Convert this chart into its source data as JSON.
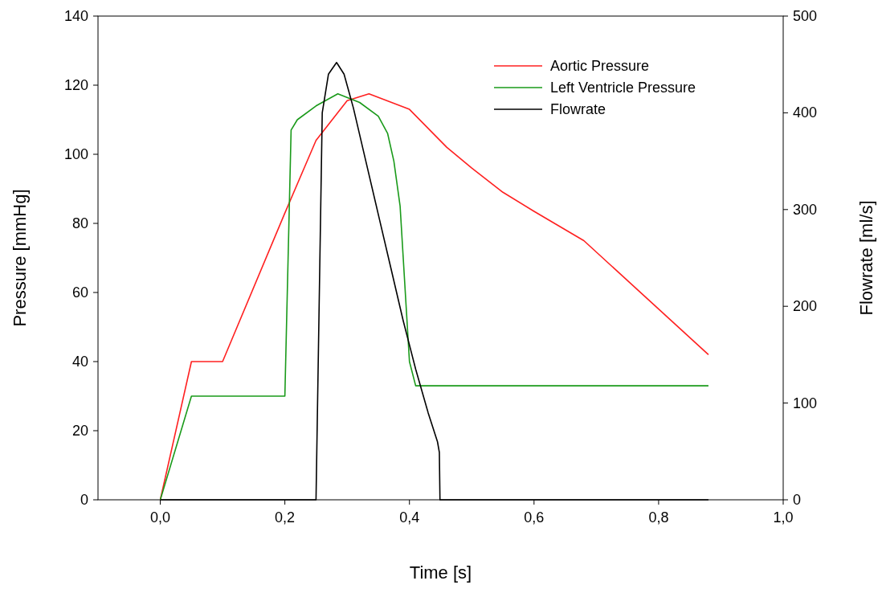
{
  "chart_data": {
    "type": "line",
    "xlabel": "Time [s]",
    "ylabel": "Pressure [mmHg]",
    "y2label": "Flowrate [ml/s]",
    "xlim": [
      -0.1,
      1.0
    ],
    "xticks": [
      {
        "value": 0,
        "label": "0,0"
      },
      {
        "value": 0.2,
        "label": "0,2"
      },
      {
        "value": 0.4,
        "label": "0,4"
      },
      {
        "value": 0.6,
        "label": "0,6"
      },
      {
        "value": 0.8,
        "label": "0,8"
      },
      {
        "value": 1.0,
        "label": "1,0"
      }
    ],
    "ylim": [
      0,
      140
    ],
    "yticks": [
      0,
      20,
      40,
      60,
      80,
      100,
      120,
      140
    ],
    "y2lim": [
      0,
      500
    ],
    "y2ticks": [
      0,
      100,
      200,
      300,
      400,
      500
    ],
    "grid": false,
    "legend": "top right",
    "marker": "none",
    "line_style": "solid",
    "series": [
      {
        "name": "Aortic Pressure",
        "color": "#ff2020",
        "x": [
          0,
          0.05,
          0.1,
          0.2,
          0.25,
          0.3,
          0.335,
          0.4,
          0.46,
          0.5,
          0.55,
          0.6,
          0.68,
          0.88
        ],
        "values": [
          0,
          40,
          40,
          83,
          104,
          115.5,
          117.5,
          113,
          102,
          96,
          89,
          83.5,
          75,
          42
        ]
      },
      {
        "name": "Left Ventricle Pressure",
        "color": "#1a9a1a",
        "x": [
          0,
          0.05,
          0.2,
          0.21,
          0.22,
          0.25,
          0.285,
          0.32,
          0.35,
          0.365,
          0.375,
          0.385,
          0.39,
          0.4,
          0.41,
          0.88
        ],
        "values": [
          0,
          30,
          30,
          107,
          110,
          114,
          117.5,
          115,
          111,
          106,
          98,
          85,
          70,
          40,
          33,
          33
        ]
      },
      {
        "name": "Flowrate",
        "color": "#000000",
        "axis": "y2",
        "x": [
          0,
          0.25,
          0.255,
          0.26,
          0.27,
          0.283,
          0.295,
          0.31,
          0.33,
          0.35,
          0.37,
          0.39,
          0.41,
          0.43,
          0.445,
          0.448,
          0.449,
          0.88
        ],
        "values": [
          0,
          0,
          200,
          400,
          440,
          452,
          440,
          405,
          350,
          295,
          240,
          185,
          135,
          90,
          60,
          49,
          0,
          0
        ]
      }
    ]
  }
}
